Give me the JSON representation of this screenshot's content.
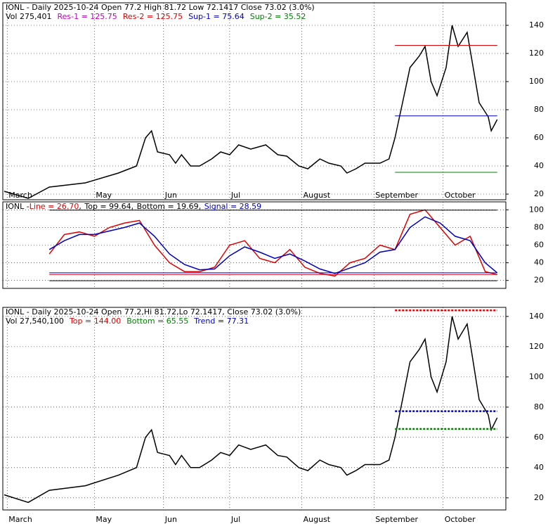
{
  "chart_data": [
    {
      "type": "line",
      "title": "IONL - Daily 2025-10-24 Open 77.2  High 81.72  Low 72.1417  Close 73.02 (3.0%)",
      "subtitle": "Vol 275,401",
      "levels": [
        {
          "label": "Res-1 = 125.75",
          "value": 125.75,
          "color": "#c000c0"
        },
        {
          "label": "Res-2 = 125.75",
          "value": 125.75,
          "color": "#e00000"
        },
        {
          "label": "Sup-1 = 75.64",
          "value": 75.64,
          "color": "#0000c0"
        },
        {
          "label": "Sup-2 = 35.52",
          "value": 35.52,
          "color": "#008000"
        }
      ],
      "x": [
        0,
        8,
        15,
        27,
        38,
        44,
        47,
        49,
        51,
        55,
        57,
        59,
        62,
        65,
        69,
        72,
        75,
        78,
        82,
        87,
        91,
        94,
        98,
        101,
        105,
        108,
        112,
        114,
        117,
        120,
        125,
        128,
        130,
        133,
        135,
        138,
        140,
        142,
        144,
        147,
        149,
        151,
        154,
        156,
        158,
        161,
        162,
        164
      ],
      "series": [
        {
          "color": "#000000",
          "values": [
            22,
            17,
            25,
            28,
            35,
            40,
            60,
            65,
            50,
            48,
            42,
            48,
            40,
            40,
            45,
            50,
            48,
            55,
            52,
            55,
            48,
            47,
            40,
            38,
            45,
            42,
            40,
            35,
            38,
            42,
            42,
            45,
            60,
            90,
            110,
            118,
            125,
            100,
            90,
            110,
            140,
            125,
            135,
            110,
            85,
            75,
            65,
            73
          ]
        }
      ],
      "xlim": [
        0,
        165
      ],
      "xticks": [
        {
          "value": 1,
          "label": "March"
        },
        {
          "value": 30,
          "label": "May"
        },
        {
          "value": 53,
          "label": "Jun"
        },
        {
          "value": 75,
          "label": "Jul"
        },
        {
          "value": 99,
          "label": "August"
        },
        {
          "value": 123,
          "label": "September"
        },
        {
          "value": 146,
          "label": "October"
        }
      ],
      "ylim": [
        16,
        156
      ],
      "yticks": [
        20,
        40,
        60,
        80,
        100,
        120,
        140
      ],
      "grid": true
    },
    {
      "type": "line",
      "title": "IONL - ",
      "levels": [
        {
          "label": "Line = 26.70",
          "value": 26.7,
          "color": "#e00000"
        },
        {
          "label": "Top = 99.64",
          "value": 99.64,
          "color": "#000000"
        },
        {
          "label": "Bottom = 19.69",
          "value": 19.69,
          "color": "#000000"
        },
        {
          "label": "Signal = 28.59",
          "value": 28.59,
          "color": "#0000c0"
        }
      ],
      "x": [
        15,
        20,
        25,
        30,
        35,
        40,
        45,
        50,
        55,
        60,
        65,
        70,
        75,
        80,
        85,
        90,
        95,
        100,
        105,
        110,
        115,
        120,
        125,
        130,
        135,
        140,
        145,
        150,
        155,
        160,
        164
      ],
      "series": [
        {
          "color": "#e00000",
          "values": [
            50,
            72,
            75,
            70,
            80,
            85,
            88,
            60,
            40,
            30,
            30,
            35,
            60,
            65,
            45,
            40,
            55,
            35,
            28,
            25,
            40,
            45,
            60,
            55,
            95,
            100,
            80,
            60,
            70,
            30,
            26.7
          ]
        },
        {
          "color": "#0000c0",
          "values": [
            55,
            65,
            72,
            72,
            76,
            80,
            85,
            70,
            50,
            38,
            32,
            33,
            48,
            58,
            52,
            45,
            50,
            42,
            33,
            28,
            34,
            40,
            52,
            55,
            80,
            92,
            85,
            70,
            65,
            40,
            28.59
          ]
        }
      ],
      "xlim": [
        0,
        165
      ],
      "ylim": [
        11,
        109
      ],
      "yticks": [
        20,
        40,
        60,
        80,
        100
      ],
      "grid": true
    },
    {
      "type": "line",
      "title": "IONL - Daily 2025-10-24 Open 77.2,Hi 81.72,Lo 72.1417, Close 73.02 (3.0%)",
      "subtitle": "Vol 27,540,100",
      "levels": [
        {
          "label": "Top = 144.00",
          "value": 144.0,
          "color": "#e00000"
        },
        {
          "label": "Bottom = 65.55",
          "value": 65.55,
          "color": "#008000"
        },
        {
          "label": "Trend = 77.31",
          "value": 77.31,
          "color": "#0000c0"
        }
      ],
      "xlim": [
        0,
        165
      ],
      "ylim": [
        12,
        146
      ],
      "yticks": [
        20,
        40,
        60,
        80,
        100,
        120,
        140
      ],
      "grid": true
    }
  ]
}
